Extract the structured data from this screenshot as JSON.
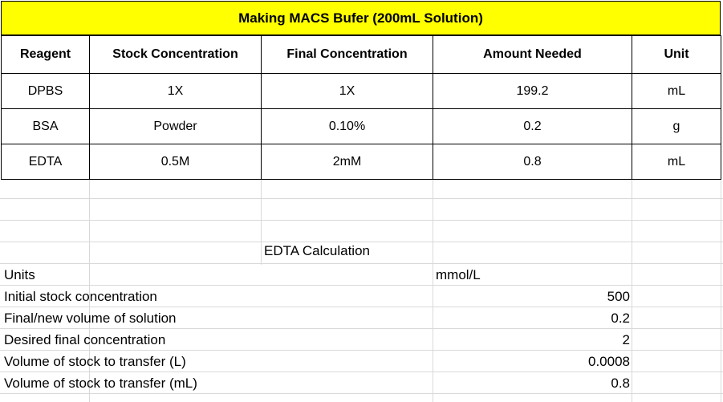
{
  "title": "Making MACS Bufer (200mL Solution)",
  "headers": [
    "Reagent",
    "Stock Concentration",
    "Final Concentration",
    "Amount Needed",
    "Unit"
  ],
  "rows": [
    [
      "DPBS",
      "1X",
      "1X",
      "199.2",
      "mL"
    ],
    [
      "BSA",
      "Powder",
      "0.10%",
      "0.2",
      "g"
    ],
    [
      "EDTA",
      "0.5M",
      "2mM",
      "0.8",
      "mL"
    ]
  ],
  "calc": {
    "title": "EDTA Calculation",
    "units_label": "Units",
    "units_value": "mmol/L",
    "items": [
      {
        "label": "Initial stock concentration",
        "value": "500"
      },
      {
        "label": "Final/new volume of solution",
        "value": "0.2"
      },
      {
        "label": "Desired final concentration",
        "value": "2"
      },
      {
        "label": "Volume of stock to transfer (L)",
        "value": "0.0008"
      },
      {
        "label": "Volume of stock to transfer (mL)",
        "value": "0.8"
      }
    ]
  }
}
